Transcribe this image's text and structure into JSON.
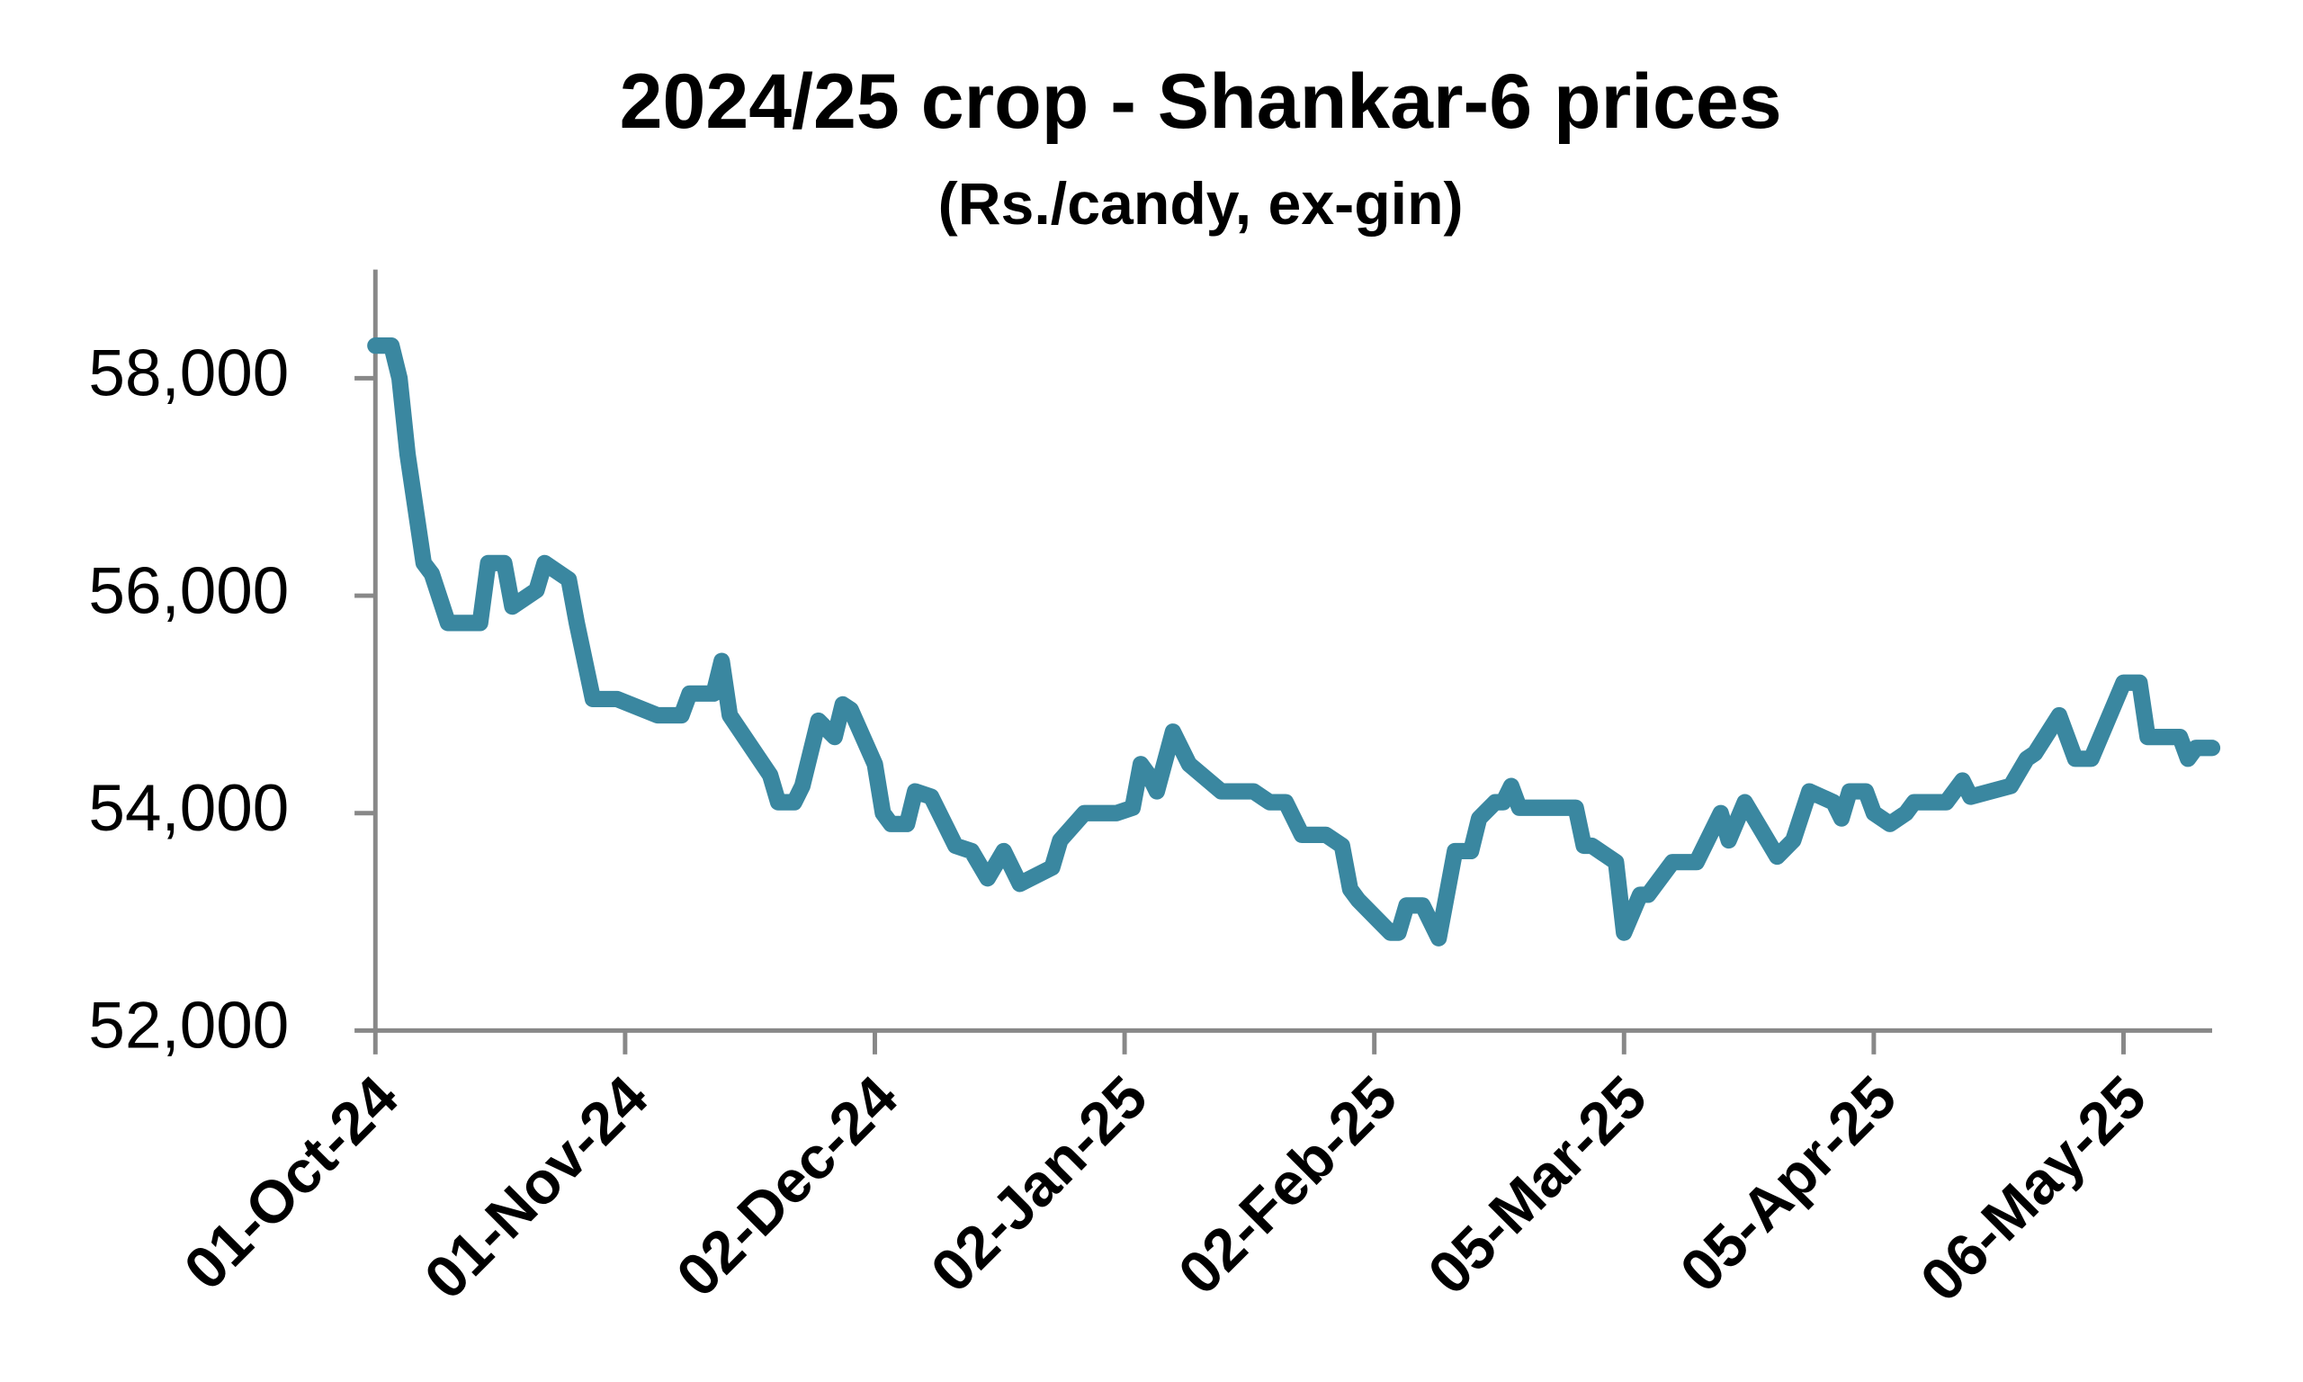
{
  "chart_data": {
    "type": "line",
    "title": "2024/25 crop - Shankar-6 prices",
    "subtitle": "(Rs./candy, ex-gin)",
    "color": "#3a87a0",
    "x": [
      "2024-10-01",
      "2024-10-03",
      "2024-10-04",
      "2024-10-05",
      "2024-10-07",
      "2024-10-08",
      "2024-10-10",
      "2024-10-14",
      "2024-10-15",
      "2024-10-17",
      "2024-10-18",
      "2024-10-21",
      "2024-10-22",
      "2024-10-25",
      "2024-10-26",
      "2024-10-28",
      "2024-10-31",
      "2024-11-05",
      "2024-11-08",
      "2024-11-09",
      "2024-11-12",
      "2024-11-13",
      "2024-11-14",
      "2024-11-19",
      "2024-11-20",
      "2024-11-22",
      "2024-11-23",
      "2024-11-25",
      "2024-11-27",
      "2024-11-28",
      "2024-11-29",
      "2024-12-02",
      "2024-12-03",
      "2024-12-04",
      "2024-12-06",
      "2024-12-07",
      "2024-12-09",
      "2024-12-12",
      "2024-12-14",
      "2024-12-16",
      "2024-12-18",
      "2024-12-20",
      "2024-12-24",
      "2024-12-25",
      "2024-12-28",
      "2025-01-01",
      "2025-01-03",
      "2025-01-04",
      "2025-01-05",
      "2025-01-06",
      "2025-01-08",
      "2025-01-10",
      "2025-01-14",
      "2025-01-18",
      "2025-01-20",
      "2025-01-22",
      "2025-01-24",
      "2025-01-27",
      "2025-01-29",
      "2025-01-30",
      "2025-01-31",
      "2025-02-04",
      "2025-02-05",
      "2025-02-06",
      "2025-02-08",
      "2025-02-10",
      "2025-02-12",
      "2025-02-14",
      "2025-02-15",
      "2025-02-17",
      "2025-02-18",
      "2025-02-19",
      "2025-02-20",
      "2025-02-27",
      "2025-02-28",
      "2025-03-01",
      "2025-03-04",
      "2025-03-05",
      "2025-03-07",
      "2025-03-08",
      "2025-03-11",
      "2025-03-14",
      "2025-03-17",
      "2025-03-18",
      "2025-03-20",
      "2025-03-22",
      "2025-03-24",
      "2025-03-26",
      "2025-03-28",
      "2025-03-31",
      "2025-04-01",
      "2025-04-02",
      "2025-04-04",
      "2025-04-05",
      "2025-04-07",
      "2025-04-09",
      "2025-04-10",
      "2025-04-14",
      "2025-04-16",
      "2025-04-17",
      "2025-04-22",
      "2025-04-24",
      "2025-04-25",
      "2025-04-28",
      "2025-04-30",
      "2025-05-02",
      "2025-05-06",
      "2025-05-08",
      "2025-05-09",
      "2025-05-13",
      "2025-05-14",
      "2025-05-15",
      "2025-05-17"
    ],
    "values": [
      58300,
      58300,
      58000,
      57300,
      56300,
      56200,
      55750,
      55750,
      56300,
      56300,
      55900,
      56050,
      56300,
      56150,
      55750,
      55050,
      55050,
      54900,
      54900,
      55100,
      55100,
      55400,
      54900,
      54350,
      54100,
      54100,
      54250,
      54850,
      54700,
      55000,
      54950,
      54450,
      54000,
      53900,
      53900,
      54200,
      54150,
      53700,
      53650,
      53400,
      53650,
      53350,
      53500,
      53750,
      54000,
      54000,
      54050,
      54450,
      54350,
      54200,
      54750,
      54450,
      54200,
      54200,
      54100,
      54100,
      53800,
      53800,
      53700,
      53300,
      53200,
      52900,
      52900,
      53150,
      53150,
      52850,
      53650,
      53650,
      53950,
      54100,
      54100,
      54250,
      54050,
      54050,
      53700,
      53700,
      53550,
      52900,
      53250,
      53250,
      53550,
      53550,
      54000,
      53750,
      54100,
      53850,
      53600,
      53750,
      54200,
      54100,
      53950,
      54200,
      54200,
      54000,
      53900,
      54000,
      54100,
      54100,
      54300,
      54150,
      54250,
      54500,
      54550,
      54900,
      54500,
      54500,
      55200,
      55200,
      54700,
      54700,
      54500,
      54600,
      54600
    ],
    "xlim": [
      "2024-10-01",
      "2025-05-17"
    ],
    "xticks": [
      {
        "value": "2024-10-01",
        "label": "01-Oct-24"
      },
      {
        "value": "2024-11-01",
        "label": "01-Nov-24"
      },
      {
        "value": "2024-12-02",
        "label": "02-Dec-24"
      },
      {
        "value": "2025-01-02",
        "label": "02-Jan-25"
      },
      {
        "value": "2025-02-02",
        "label": "02-Feb-25"
      },
      {
        "value": "2025-03-05",
        "label": "05-Mar-25"
      },
      {
        "value": "2025-04-05",
        "label": "05-Apr-25"
      },
      {
        "value": "2025-05-06",
        "label": "06-May-25"
      }
    ],
    "ylim": [
      52000,
      59000
    ],
    "yticks": [
      {
        "value": 52000,
        "label": "52,000"
      },
      {
        "value": 54000,
        "label": "54,000"
      },
      {
        "value": 56000,
        "label": "56,000"
      },
      {
        "value": 58000,
        "label": "58,000"
      }
    ],
    "grid": false
  }
}
